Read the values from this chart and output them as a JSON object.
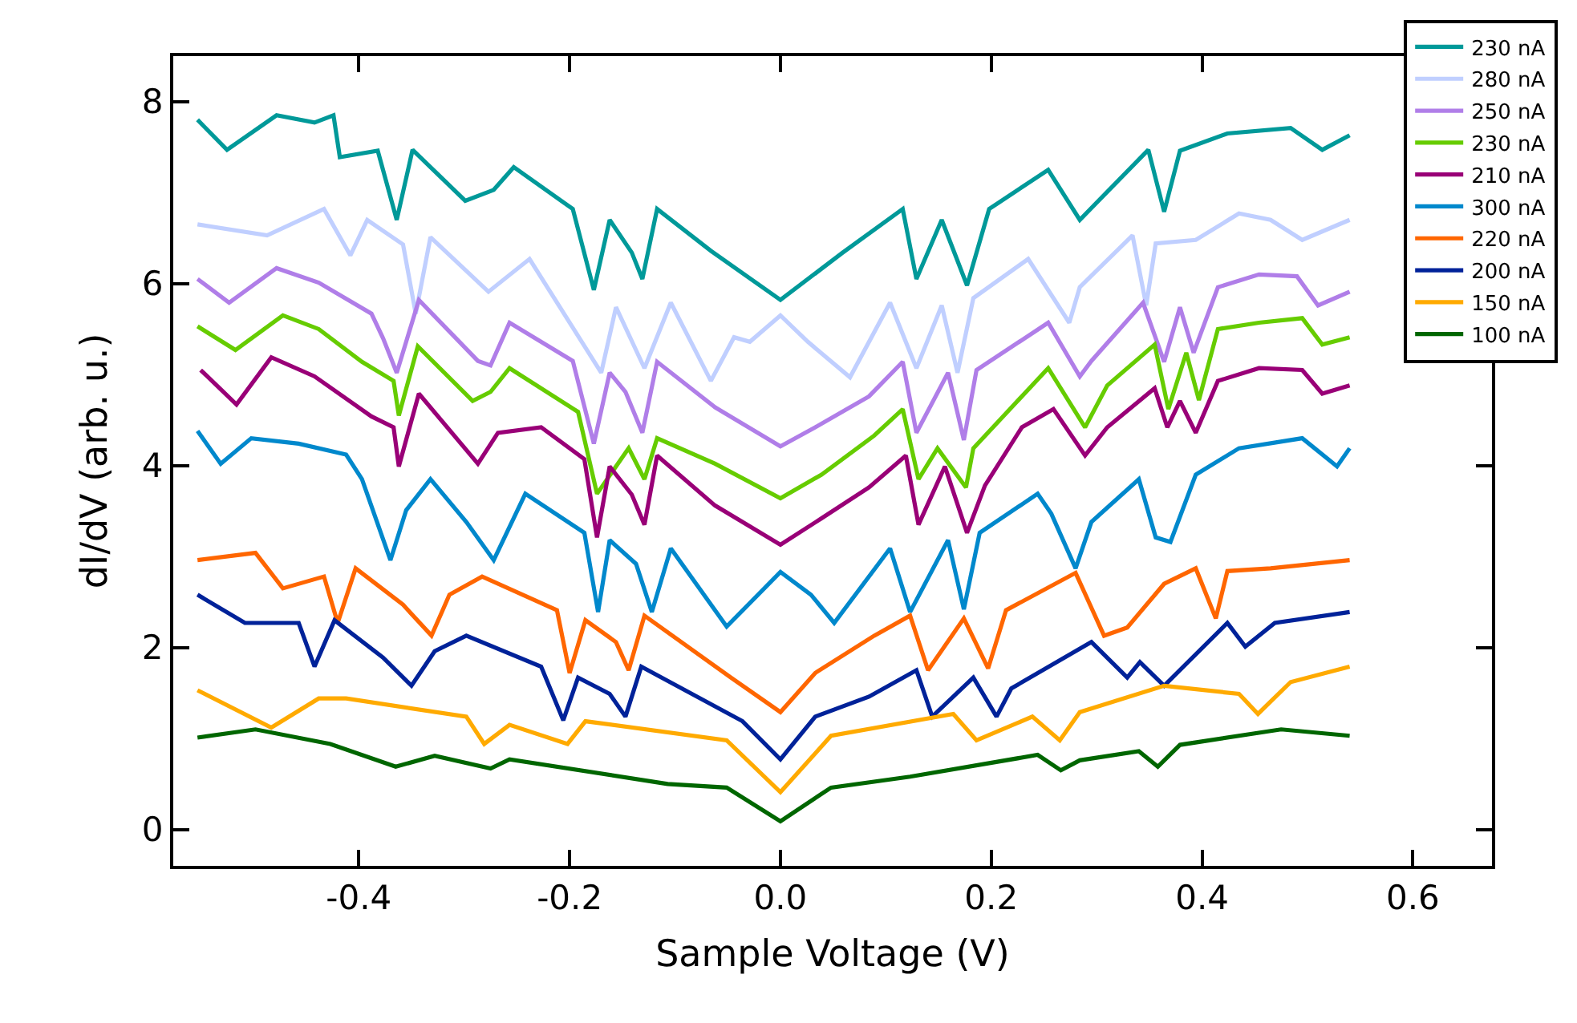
{
  "chart_data": {
    "type": "line",
    "xlabel": "Sample Voltage (V)",
    "ylabel": "dI/dV (arb. u.)",
    "xlim": [
      -0.576,
      0.675
    ],
    "xticks": [
      -0.4,
      -0.2,
      {
        "value": 0,
        "label": "0.0"
      },
      0.2,
      0.4,
      0.6
    ],
    "ylim": [
      -0.4,
      8.5
    ],
    "yticks": [
      0,
      2,
      4,
      6,
      8
    ],
    "legend": "top right",
    "line_style": "solid",
    "marker": "none",
    "series": [
      {
        "name": "230 nA",
        "color": "#009999",
        "x": [
          -0.553,
          -0.525,
          -0.478,
          -0.442,
          -0.424,
          -0.418,
          -0.382,
          -0.364,
          -0.349,
          -0.299,
          -0.272,
          -0.253,
          -0.197,
          -0.177,
          -0.162,
          -0.141,
          -0.131,
          -0.117,
          -0.066,
          0.0,
          0.059,
          0.116,
          0.129,
          0.153,
          0.177,
          0.198,
          0.254,
          0.284,
          0.349,
          0.364,
          0.379,
          0.424,
          0.484,
          0.514,
          0.54
        ],
        "values": [
          7.8,
          7.47,
          7.85,
          7.77,
          7.85,
          7.39,
          7.46,
          6.7,
          7.47,
          6.91,
          7.03,
          7.28,
          6.82,
          5.93,
          6.7,
          6.34,
          6.05,
          6.82,
          6.36,
          5.82,
          6.34,
          6.82,
          6.05,
          6.7,
          5.98,
          6.82,
          7.25,
          6.7,
          7.47,
          6.79,
          7.46,
          7.65,
          7.71,
          7.47,
          7.63
        ]
      },
      {
        "name": "280 nA",
        "color": "#c0cfff",
        "x": [
          -0.553,
          -0.487,
          -0.433,
          -0.408,
          -0.392,
          -0.358,
          -0.346,
          -0.332,
          -0.277,
          -0.238,
          -0.17,
          -0.156,
          -0.129,
          -0.104,
          -0.066,
          -0.044,
          -0.029,
          0.0,
          0.026,
          0.066,
          0.104,
          0.129,
          0.153,
          0.168,
          0.183,
          0.235,
          0.274,
          0.284,
          0.334,
          0.347,
          0.356,
          0.394,
          0.435,
          0.465,
          0.495,
          0.54
        ],
        "values": [
          6.65,
          6.53,
          6.82,
          6.31,
          6.7,
          6.43,
          5.67,
          6.51,
          5.91,
          6.27,
          5.02,
          5.74,
          5.07,
          5.79,
          4.93,
          5.41,
          5.36,
          5.65,
          5.36,
          4.97,
          5.79,
          5.07,
          5.76,
          5.02,
          5.84,
          6.27,
          5.57,
          5.96,
          6.53,
          5.76,
          6.44,
          6.48,
          6.77,
          6.7,
          6.48,
          6.7
        ]
      },
      {
        "name": "250 nA",
        "color": "#b07ee8",
        "x": [
          -0.553,
          -0.523,
          -0.478,
          -0.438,
          -0.388,
          -0.377,
          -0.364,
          -0.343,
          -0.287,
          -0.275,
          -0.257,
          -0.197,
          -0.177,
          -0.162,
          -0.147,
          -0.131,
          -0.117,
          -0.062,
          0.0,
          0.033,
          0.084,
          0.116,
          0.129,
          0.159,
          0.174,
          0.186,
          0.254,
          0.284,
          0.295,
          0.344,
          0.364,
          0.379,
          0.392,
          0.415,
          0.454,
          0.49,
          0.51,
          0.54
        ],
        "values": [
          6.05,
          5.79,
          6.17,
          6.01,
          5.67,
          5.4,
          5.02,
          5.82,
          5.15,
          5.1,
          5.57,
          5.15,
          4.24,
          5.02,
          4.81,
          4.36,
          5.14,
          4.64,
          4.21,
          4.42,
          4.76,
          5.14,
          4.36,
          5.02,
          4.28,
          5.05,
          5.57,
          4.98,
          5.15,
          5.79,
          5.14,
          5.74,
          5.24,
          5.96,
          6.1,
          6.08,
          5.76,
          5.91
        ]
      },
      {
        "name": "230 nA",
        "color": "#66cc00",
        "x": [
          -0.553,
          -0.517,
          -0.472,
          -0.438,
          -0.397,
          -0.367,
          -0.362,
          -0.344,
          -0.292,
          -0.275,
          -0.257,
          -0.192,
          -0.174,
          -0.144,
          -0.129,
          -0.117,
          -0.062,
          0.0,
          0.039,
          0.089,
          0.116,
          0.131,
          0.149,
          0.176,
          0.183,
          0.254,
          0.289,
          0.31,
          0.355,
          0.368,
          0.385,
          0.397,
          0.415,
          0.454,
          0.495,
          0.514,
          0.54
        ],
        "values": [
          5.53,
          5.27,
          5.65,
          5.5,
          5.14,
          4.93,
          4.55,
          5.31,
          4.71,
          4.81,
          5.07,
          4.59,
          3.69,
          4.19,
          3.85,
          4.3,
          4.02,
          3.64,
          3.9,
          4.33,
          4.62,
          3.85,
          4.19,
          3.76,
          4.19,
          5.07,
          4.42,
          4.88,
          5.33,
          4.62,
          5.24,
          4.72,
          5.5,
          5.57,
          5.62,
          5.33,
          5.41
        ]
      },
      {
        "name": "210 nA",
        "color": "#990077",
        "x": [
          -0.55,
          -0.516,
          -0.483,
          -0.442,
          -0.388,
          -0.367,
          -0.362,
          -0.343,
          -0.287,
          -0.268,
          -0.227,
          -0.186,
          -0.174,
          -0.162,
          -0.141,
          -0.129,
          -0.117,
          -0.062,
          0.0,
          0.039,
          0.084,
          0.119,
          0.131,
          0.156,
          0.177,
          0.194,
          0.229,
          0.259,
          0.289,
          0.31,
          0.355,
          0.367,
          0.379,
          0.394,
          0.415,
          0.454,
          0.495,
          0.514,
          0.54
        ],
        "values": [
          5.05,
          4.67,
          5.19,
          4.98,
          4.54,
          4.42,
          3.99,
          4.79,
          4.02,
          4.36,
          4.42,
          4.07,
          3.21,
          3.99,
          3.68,
          3.35,
          4.11,
          3.56,
          3.13,
          3.42,
          3.76,
          4.11,
          3.35,
          3.99,
          3.26,
          3.78,
          4.42,
          4.62,
          4.11,
          4.42,
          4.85,
          4.42,
          4.71,
          4.36,
          4.93,
          5.07,
          5.05,
          4.79,
          4.88
        ]
      },
      {
        "name": "300 nA",
        "color": "#0088cc",
        "x": [
          -0.553,
          -0.531,
          -0.502,
          -0.457,
          -0.412,
          -0.397,
          -0.37,
          -0.355,
          -0.332,
          -0.298,
          -0.272,
          -0.242,
          -0.186,
          -0.173,
          -0.162,
          -0.137,
          -0.122,
          -0.104,
          -0.051,
          0.0,
          0.029,
          0.051,
          0.104,
          0.123,
          0.159,
          0.174,
          0.189,
          0.244,
          0.257,
          0.28,
          0.295,
          0.34,
          0.356,
          0.37,
          0.394,
          0.435,
          0.495,
          0.528,
          0.54
        ],
        "values": [
          4.38,
          4.02,
          4.3,
          4.24,
          4.12,
          3.85,
          2.96,
          3.51,
          3.85,
          3.38,
          2.96,
          3.69,
          3.26,
          2.39,
          3.18,
          2.92,
          2.39,
          3.09,
          2.23,
          2.83,
          2.58,
          2.27,
          3.09,
          2.39,
          3.18,
          2.42,
          3.26,
          3.69,
          3.47,
          2.87,
          3.38,
          3.85,
          3.21,
          3.16,
          3.9,
          4.19,
          4.3,
          3.99,
          4.19
        ]
      },
      {
        "name": "220 nA",
        "color": "#ff6600",
        "x": [
          -0.553,
          -0.498,
          -0.472,
          -0.433,
          -0.42,
          -0.403,
          -0.358,
          -0.331,
          -0.314,
          -0.283,
          -0.212,
          -0.2,
          -0.185,
          -0.156,
          -0.144,
          -0.129,
          -0.047,
          0.0,
          0.033,
          0.089,
          0.123,
          0.14,
          0.174,
          0.197,
          0.214,
          0.28,
          0.307,
          0.329,
          0.364,
          0.394,
          0.413,
          0.424,
          0.465,
          0.54
        ],
        "values": [
          2.96,
          3.04,
          2.65,
          2.78,
          2.27,
          2.87,
          2.47,
          2.13,
          2.58,
          2.78,
          2.41,
          1.72,
          2.3,
          2.06,
          1.75,
          2.35,
          1.67,
          1.29,
          1.72,
          2.13,
          2.35,
          1.75,
          2.32,
          1.77,
          2.41,
          2.82,
          2.13,
          2.22,
          2.7,
          2.87,
          2.32,
          2.84,
          2.87,
          2.96
        ]
      },
      {
        "name": "200 nA",
        "color": "#002299",
        "x": [
          -0.553,
          -0.508,
          -0.457,
          -0.442,
          -0.423,
          -0.377,
          -0.35,
          -0.328,
          -0.298,
          -0.227,
          -0.206,
          -0.192,
          -0.162,
          -0.147,
          -0.132,
          -0.036,
          0.0,
          0.033,
          0.084,
          0.129,
          0.144,
          0.183,
          0.205,
          0.219,
          0.295,
          0.329,
          0.341,
          0.364,
          0.424,
          0.441,
          0.469,
          0.54
        ],
        "values": [
          2.58,
          2.27,
          2.27,
          1.79,
          2.3,
          1.89,
          1.58,
          1.96,
          2.13,
          1.79,
          1.2,
          1.67,
          1.49,
          1.24,
          1.79,
          1.19,
          0.77,
          1.24,
          1.46,
          1.75,
          1.24,
          1.67,
          1.24,
          1.55,
          2.06,
          1.67,
          1.84,
          1.58,
          2.27,
          2.01,
          2.27,
          2.39
        ]
      },
      {
        "name": "150 nA",
        "color": "#ffaa00",
        "x": [
          -0.553,
          -0.483,
          -0.438,
          -0.412,
          -0.298,
          -0.281,
          -0.257,
          -0.202,
          -0.185,
          -0.051,
          0.0,
          0.048,
          0.164,
          0.186,
          0.239,
          0.265,
          0.284,
          0.364,
          0.435,
          0.453,
          0.484,
          0.54
        ],
        "values": [
          1.53,
          1.12,
          1.44,
          1.44,
          1.24,
          0.94,
          1.15,
          0.94,
          1.19,
          0.98,
          0.41,
          1.03,
          1.27,
          0.98,
          1.24,
          0.98,
          1.29,
          1.58,
          1.49,
          1.27,
          1.62,
          1.79
        ]
      },
      {
        "name": "100 nA",
        "color": "#006600",
        "x": [
          -0.553,
          -0.498,
          -0.427,
          -0.365,
          -0.328,
          -0.275,
          -0.257,
          -0.107,
          -0.051,
          0.0,
          0.048,
          0.123,
          0.244,
          0.266,
          0.284,
          0.34,
          0.358,
          0.379,
          0.475,
          0.54
        ],
        "values": [
          1.01,
          1.1,
          0.94,
          0.69,
          0.81,
          0.67,
          0.77,
          0.5,
          0.46,
          0.09,
          0.46,
          0.58,
          0.82,
          0.65,
          0.76,
          0.86,
          0.69,
          0.93,
          1.1,
          1.03
        ]
      }
    ]
  }
}
